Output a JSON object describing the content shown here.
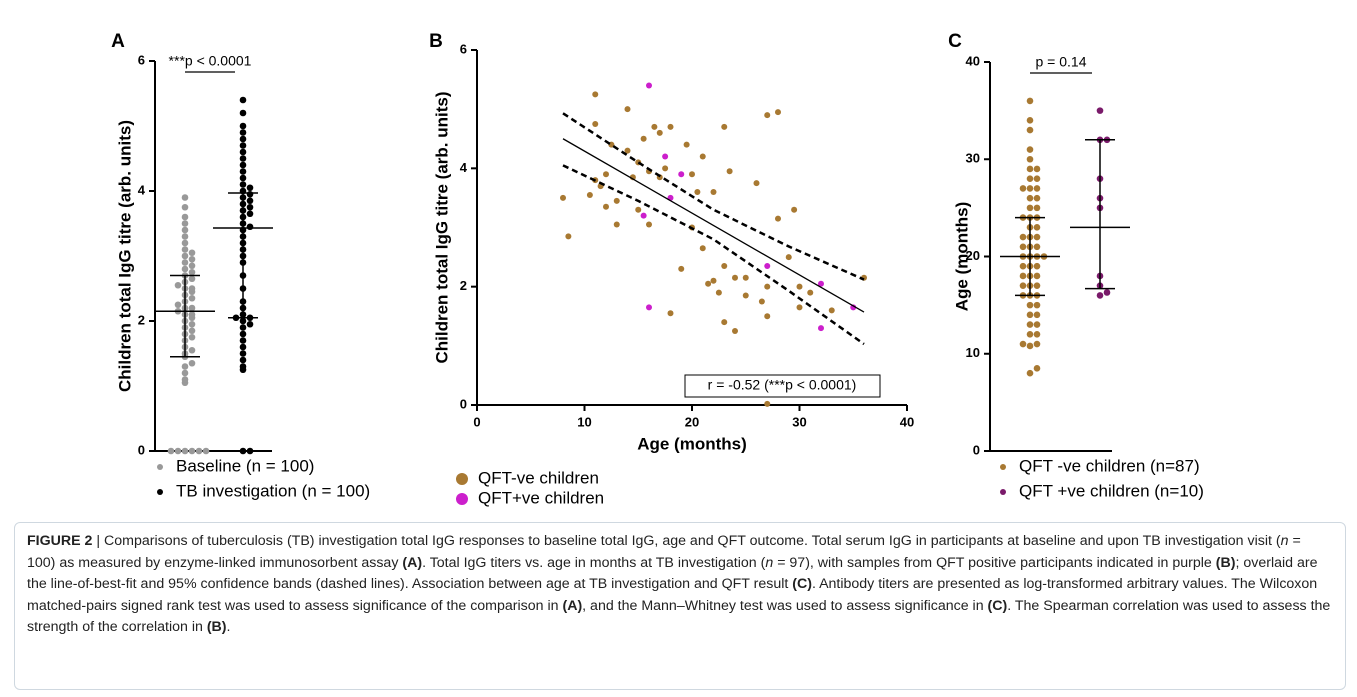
{
  "chart_data": [
    {
      "type": "dotplot",
      "label": "A",
      "ylabel": "Children total IgG titre (arb. units)",
      "ylim": [
        0,
        6
      ],
      "yticks": [
        0,
        2,
        4,
        6
      ],
      "significance": "***p < 0.0001",
      "series": [
        {
          "name": "Baseline (n = 100)",
          "color": "#999999",
          "median": 2.15,
          "lower": 1.45,
          "upper": 2.7,
          "values": [
            0,
            0,
            0,
            0,
            0,
            0,
            1.05,
            1.1,
            1.2,
            1.3,
            1.35,
            1.45,
            1.5,
            1.55,
            1.6,
            1.7,
            1.75,
            1.8,
            1.85,
            1.9,
            1.95,
            2.0,
            2.05,
            2.1,
            2.1,
            2.15,
            2.2,
            2.2,
            2.25,
            2.3,
            2.35,
            2.4,
            2.45,
            2.5,
            2.5,
            2.55,
            2.6,
            2.65,
            2.7,
            2.75,
            2.8,
            2.85,
            2.9,
            2.95,
            3.0,
            3.05,
            3.1,
            3.2,
            3.3,
            3.4,
            3.5,
            3.6,
            3.75,
            3.9
          ]
        },
        {
          "name": "TB investigation (n = 100)",
          "color": "#000000",
          "median": 3.43,
          "lower": 2.05,
          "upper": 3.97,
          "values": [
            0,
            0,
            1.25,
            1.3,
            1.4,
            1.5,
            1.6,
            1.7,
            1.8,
            1.9,
            1.95,
            2.0,
            2.05,
            2.05,
            2.1,
            2.2,
            2.3,
            2.5,
            2.7,
            2.9,
            3.0,
            3.1,
            3.2,
            3.3,
            3.4,
            3.45,
            3.5,
            3.6,
            3.65,
            3.7,
            3.75,
            3.8,
            3.85,
            3.9,
            3.95,
            4.0,
            4.05,
            4.1,
            4.2,
            4.3,
            4.4,
            4.5,
            4.6,
            4.7,
            4.8,
            4.9,
            5.0,
            5.2,
            5.4
          ]
        }
      ]
    },
    {
      "type": "scatter",
      "label": "B",
      "ylabel": "Children total IgG titre (arb. units)",
      "xlabel": "Age (months)",
      "xlim": [
        0,
        40
      ],
      "xticks": [
        0,
        10,
        20,
        30,
        40
      ],
      "ylim": [
        0,
        6
      ],
      "yticks": [
        0,
        2,
        4,
        6
      ],
      "annotation": "r = -0.52 (***p < 0.0001)",
      "series": [
        {
          "name": "QFT-ve children",
          "color": "#a87932",
          "x": [
            8,
            8.5,
            11,
            11,
            11,
            11.5,
            12,
            12.5,
            13,
            13,
            14,
            14,
            14.5,
            15,
            15,
            15.5,
            16,
            16,
            16.5,
            17,
            17,
            17.5,
            18,
            18,
            19,
            19.5,
            20,
            20.5,
            21,
            21,
            21.5,
            22,
            22.5,
            23,
            23,
            23,
            23.5,
            24,
            24,
            25,
            26,
            26.5,
            27,
            27,
            27,
            27,
            28,
            28,
            29,
            29.5,
            30,
            30,
            31,
            33,
            36,
            10.5,
            12,
            20,
            25,
            22
          ],
          "y": [
            3.5,
            2.85,
            5.25,
            4.75,
            3.8,
            3.7,
            3.9,
            4.4,
            3.45,
            3.05,
            5.0,
            4.3,
            3.85,
            4.1,
            3.3,
            4.5,
            3.95,
            3.05,
            4.7,
            4.6,
            3.85,
            4.0,
            4.7,
            1.55,
            2.3,
            4.4,
            3.9,
            3.6,
            4.2,
            2.65,
            2.05,
            2.1,
            1.9,
            4.7,
            2.35,
            1.4,
            3.95,
            1.25,
            2.15,
            1.85,
            3.75,
            1.75,
            4.9,
            2.0,
            1.5,
            0.02,
            4.95,
            3.15,
            2.5,
            3.3,
            2.0,
            1.65,
            1.9,
            1.6,
            2.15,
            3.55,
            3.35,
            3.0,
            2.15,
            3.6
          ]
        },
        {
          "name": "QFT+ve children",
          "color": "#cc1fcc",
          "x": [
            16,
            17.5,
            15.5,
            19,
            18,
            16,
            27,
            32,
            32,
            35
          ],
          "y": [
            5.4,
            4.2,
            3.2,
            3.9,
            3.5,
            1.65,
            2.35,
            2.05,
            1.3,
            1.65
          ]
        }
      ],
      "fit": {
        "x": [
          8,
          36
        ],
        "y": [
          4.5,
          1.57
        ]
      },
      "band_upper": {
        "x": [
          8,
          15,
          22,
          29,
          36
        ],
        "y": [
          4.93,
          4.1,
          3.3,
          2.68,
          2.12
        ]
      },
      "band_lower": {
        "x": [
          8,
          15,
          22,
          29,
          36
        ],
        "y": [
          4.05,
          3.45,
          2.8,
          1.93,
          1.03
        ]
      }
    },
    {
      "type": "dotplot",
      "label": "C",
      "ylabel": "Age (months)",
      "ylim": [
        0,
        40
      ],
      "yticks": [
        0,
        10,
        20,
        30,
        40
      ],
      "significance": "p = 0.14",
      "series": [
        {
          "name": "QFT -ve children (n=87)",
          "color": "#a87932",
          "median": 20,
          "lower": 16,
          "upper": 24,
          "values": [
            8,
            8.5,
            10.8,
            11,
            11,
            12,
            12,
            13,
            13,
            14,
            14,
            15,
            15,
            16,
            16,
            16,
            17,
            17,
            17,
            18,
            18,
            18,
            19,
            19,
            19,
            20,
            20,
            20,
            20,
            21,
            21,
            21,
            22,
            22,
            22,
            23,
            23,
            24,
            24,
            24,
            25,
            25,
            26,
            26,
            27,
            27,
            27,
            28,
            28,
            29,
            29,
            30,
            31,
            33,
            34,
            36
          ]
        },
        {
          "name": "QFT +ve children (n=10)",
          "color": "#7a1a6a",
          "median": 23,
          "lower": 16.7,
          "upper": 32,
          "values": [
            16,
            16.3,
            17,
            18,
            25,
            26,
            28,
            32,
            32,
            35
          ]
        }
      ]
    }
  ],
  "caption": [
    {
      "text": "FIGURE 2",
      "style": "bold"
    },
    {
      "text": " | Comparisons of tuberculosis (TB) investigation total IgG responses to baseline total IgG, age and QFT outcome. Total serum IgG in participants at baseline and upon TB investigation visit ("
    },
    {
      "text": "n",
      "style": "italic"
    },
    {
      "text": " = 100) as measured by enzyme-linked immunosorbent assay "
    },
    {
      "text": "(A)",
      "style": "bold"
    },
    {
      "text": ". Total IgG titers vs. age in months at TB investigation ("
    },
    {
      "text": "n",
      "style": "italic"
    },
    {
      "text": " = 97), with samples from QFT positive participants indicated in purple "
    },
    {
      "text": "(B)",
      "style": "bold"
    },
    {
      "text": "; overlaid are the line-of-best-fit and 95% confidence bands (dashed lines). Association between age at TB investigation and QFT result "
    },
    {
      "text": "(C)",
      "style": "bold"
    },
    {
      "text": ". Antibody titers are presented as log-transformed arbitrary values. The Wilcoxon matched-pairs signed rank test was used to assess significance of the comparison in "
    },
    {
      "text": "(A)",
      "style": "bold"
    },
    {
      "text": ", and the Mann–Whitney test was used to assess significance in "
    },
    {
      "text": "(C)",
      "style": "bold"
    },
    {
      "text": ". The Spearman correlation was used to assess the strength of the correlation in "
    },
    {
      "text": "(B)",
      "style": "bold"
    },
    {
      "text": "."
    }
  ]
}
